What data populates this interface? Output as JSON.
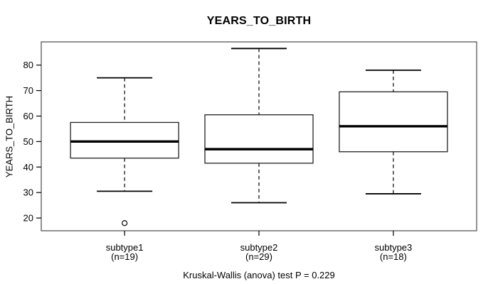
{
  "title": "YEARS_TO_BIRTH",
  "chart_data": {
    "type": "boxplot",
    "title": "YEARS_TO_BIRTH",
    "ylabel": "YEARS_TO_BIRTH",
    "xlabel": "",
    "ylim": [
      15,
      89.1
    ],
    "yticks": [
      20,
      30,
      40,
      50,
      60,
      70,
      80
    ],
    "grid": false,
    "legend": "none",
    "categories": [
      "subtype1",
      "subtype2",
      "subtype3"
    ],
    "category_counts": [
      "(n=19)",
      "(n=29)",
      "(n=18)"
    ],
    "series": [
      {
        "name": "subtype1",
        "n": 19,
        "whisker_low": 30.5,
        "q1": 43.5,
        "median": 50,
        "q3": 57.5,
        "whisker_high": 75,
        "outliers": [
          18
        ]
      },
      {
        "name": "subtype2",
        "n": 29,
        "whisker_low": 26,
        "q1": 41.5,
        "median": 47,
        "q3": 60.5,
        "whisker_high": 86.5,
        "outliers": []
      },
      {
        "name": "subtype3",
        "n": 18,
        "whisker_low": 29.5,
        "q1": 46,
        "median": 56,
        "q3": 69.5,
        "whisker_high": 78,
        "outliers": []
      }
    ],
    "annotation": "Kruskal-Wallis (anova) test P = 0.229",
    "colors": {
      "line": "#000000",
      "box_fill": "#ffffff",
      "plot_border": "#4a4a4a",
      "background": "#ffffff"
    }
  }
}
